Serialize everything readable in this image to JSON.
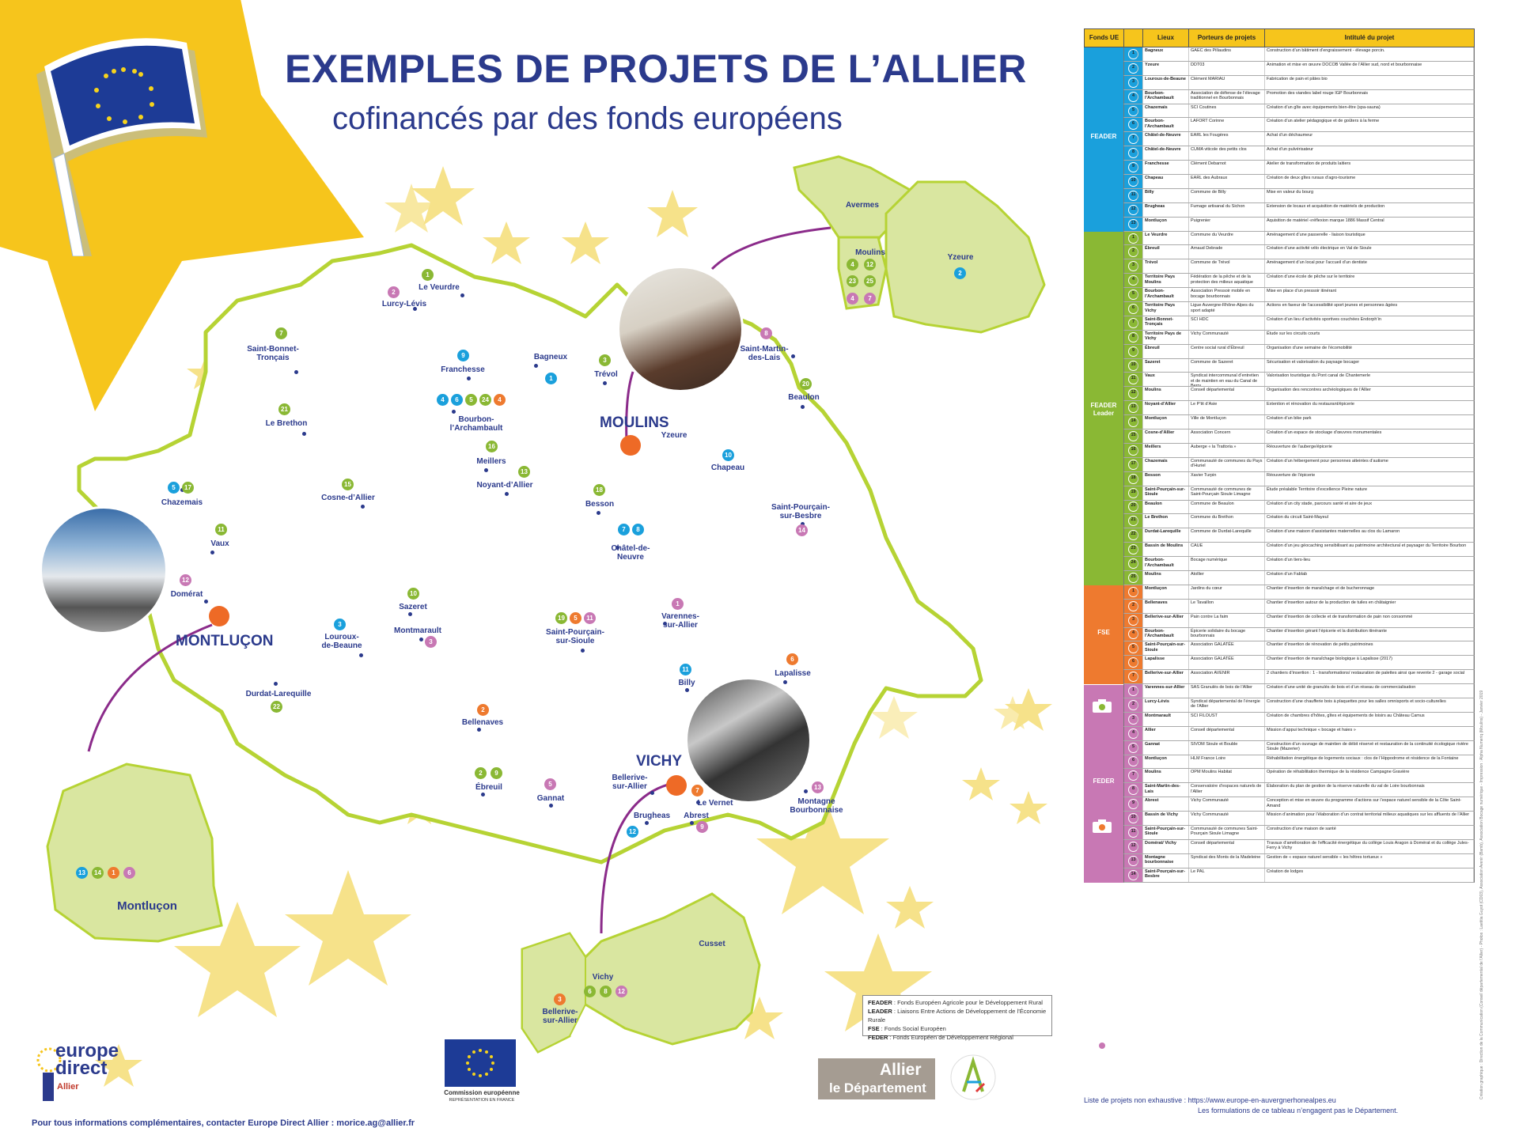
{
  "title": {
    "main": "EXEMPLES DE PROJETS DE L’ALLIER",
    "sub": "cofinancés par des fonds européens"
  },
  "colors": {
    "feader": "#1aa0dc",
    "leader": "#8ab834",
    "fse": "#ee7a2f",
    "feder": "#c878b4",
    "map_fill": "#ffffff",
    "map_outline": "#b6d334",
    "inset_fill": "#d9e6a0",
    "star": "#f6d96a",
    "city_dot": "#ee6a26"
  },
  "icons": [
    "eu-flag-icon",
    "camera-icon",
    "star-icon"
  ],
  "cities": {
    "moulins": "MOULINS",
    "montlucon": "MONTLUÇON",
    "vichy": "VICHY"
  },
  "places": [
    {
      "id": "le-veurdre",
      "label": "Le Veurdre"
    },
    {
      "id": "lurcy",
      "label": "Lurcy-Lévis"
    },
    {
      "id": "sbt",
      "label": "Saint-Bonnet-\nTronçais"
    },
    {
      "id": "franchesse",
      "label": "Franchesse"
    },
    {
      "id": "bagneux",
      "label": "Bagneux"
    },
    {
      "id": "trevol",
      "label": "Trévol"
    },
    {
      "id": "smlais",
      "label": "Saint-Martin-\ndes-Lais"
    },
    {
      "id": "beaulon",
      "label": "Beaulon"
    },
    {
      "id": "lebrethon",
      "label": "Le Brethon"
    },
    {
      "id": "bourbon",
      "label": "Bourbon-\nl’Archambault"
    },
    {
      "id": "yzeure",
      "label": "Yzeure"
    },
    {
      "id": "meillers",
      "label": "Meillers"
    },
    {
      "id": "noyant",
      "label": "Noyant-d’Allier"
    },
    {
      "id": "chapeau",
      "label": "Chapeau"
    },
    {
      "id": "chazemais",
      "label": "Chazemais"
    },
    {
      "id": "cosne",
      "label": "Cosne-d’Allier"
    },
    {
      "id": "besson",
      "label": "Besson"
    },
    {
      "id": "spsb",
      "label": "Saint-Pourçain-\nsur-Besbre"
    },
    {
      "id": "vaux",
      "label": "Vaux"
    },
    {
      "id": "chatel",
      "label": "Châtel-de-\nNeuvre"
    },
    {
      "id": "domerat",
      "label": "Domérat"
    },
    {
      "id": "sazeret",
      "label": "Sazeret"
    },
    {
      "id": "montmarault",
      "label": "Montmarault"
    },
    {
      "id": "louroux",
      "label": "Louroux-\nde-Beaune"
    },
    {
      "id": "spss",
      "label": "Saint-Pourçain-\nsur-Sioule"
    },
    {
      "id": "varennes",
      "label": "Varennes-\nsur-Allier"
    },
    {
      "id": "lapalisse",
      "label": "Lapalisse"
    },
    {
      "id": "billy",
      "label": "Billy"
    },
    {
      "id": "durdat",
      "label": "Durdat-Larequille"
    },
    {
      "id": "bellenaves",
      "label": "Bellenaves"
    },
    {
      "id": "ebreuil",
      "label": "Ébreuil"
    },
    {
      "id": "gannat",
      "label": "Gannat"
    },
    {
      "id": "bellerive",
      "label": "Bellerive-\nsur-Allier"
    },
    {
      "id": "levernet",
      "label": "Le Vernet"
    },
    {
      "id": "brugheas",
      "label": "Brugheas"
    },
    {
      "id": "abrest",
      "label": "Abrest"
    },
    {
      "id": "montagne",
      "label": "Montagne\nBourbonnaise"
    }
  ],
  "insets": {
    "moulins": {
      "avermes": "Avermes",
      "moulins": "Moulins",
      "yzeure": "Yzeure"
    },
    "montlucon": {
      "name": "Montluçon"
    },
    "vichy": {
      "cusset": "Cusset",
      "vichy": "Vichy",
      "bellerive": "Bellerive-\nsur-Allier"
    }
  },
  "legend": {
    "feader": "FEADER",
    "feader_text": " : Fonds Européen Agricole pour le Développement Rural",
    "leader": "LEADER",
    "leader_text": " : Liaisons Entre Actions de Développement de l’Économie Rurale",
    "fse": "FSE",
    "fse_text": " : Fonds Social Européen",
    "feder": "FEDER",
    "feder_text": " : Fonds Européen de Développement Régional"
  },
  "footer": "Pour tous informations complémentaires, contacter Europe Direct Allier : morice.ag@allier.fr",
  "logos": {
    "europe_direct": "europe\ndirect",
    "europe_direct_sub": "Allier",
    "commission": "Commission européenne",
    "commission_sub": "REPRÉSENTATION EN FRANCE",
    "allier1": "Allier",
    "allier2": "le Département"
  },
  "table": {
    "headers": [
      "Fonds UE",
      "Lieux",
      "Porteurs de projets",
      "Intitulé du projet"
    ],
    "funds": [
      {
        "name": "FEADER",
        "color": "#1aa0dc",
        "rows": [
          [
            "1",
            "Bagneux",
            "GAEC des Pillaudins",
            "Construction d’un bâtiment d’engraissement - élevage porcin."
          ],
          [
            "2",
            "Yzeure",
            "DDT03",
            "Animation et mise en œuvre DOCOB Vallée de l’Allier sud, nord et bourbonnaise"
          ],
          [
            "3",
            "Louroux-de-Beaune",
            "Clément MARIAU",
            "Fabrication de pain et pâtes bio"
          ],
          [
            "4",
            "Bourbon-l’Archambault",
            "Association de défense de l’élevage traditionnel en Bourbonnais",
            "Promotion des viandes label rouge IGP Bourbonnais"
          ],
          [
            "5",
            "Chazemais",
            "SCI Coutines",
            "Création d’un gîte avec équipements bien-être (spa-sauna)"
          ],
          [
            "6",
            "Bourbon-l’Archambault",
            "LAFORT Corinne",
            "Création d’un atelier pédagogique et de goûters à la ferme"
          ],
          [
            "7",
            "Châtel-de-Neuvre",
            "EARL les Fougères",
            "Achat d’un déchaumeur"
          ],
          [
            "8",
            "Châtel-de-Neuvre",
            "CUMA viticole des petits clos",
            "Achat d’un pulvérisateur"
          ],
          [
            "9",
            "Franchesse",
            "Clément Debarnot",
            "Atelier de transformation de produits laitiers"
          ],
          [
            "10",
            "Chapeau",
            "EARL des Aubraux",
            "Création de deux gîtes ruraux d’agro-tourisme"
          ],
          [
            "11",
            "Billy",
            "Commune de Billy",
            "Mise en valeur du bourg"
          ],
          [
            "12",
            "Brugheas",
            "Fumage artisanal du Sichon",
            "Extension de locaux et acquisition de matériels de production"
          ],
          [
            "13",
            "Montluçon",
            "Puigrenier",
            "Aquisition de matériel «réflexion marque 1886 Massif Central"
          ]
        ]
      },
      {
        "name": "FEADER\nLeader",
        "color": "#8ab834",
        "rows": [
          [
            "1",
            "Le Veurdre",
            "Commune du Veurdre",
            "Aménagement d’une passerelle - liaison touristique"
          ],
          [
            "2",
            "Ébreuil",
            "Arnaud Debrade",
            "Création d’une activité vélo électrique en Val de Sioule"
          ],
          [
            "3",
            "Trévol",
            "Commune de Trévol",
            "Aménagement d’un local pour l’accueil d’un dentiste"
          ],
          [
            "4",
            "Territoire Pays Moulins",
            "Fédération de la pêche et de la protection des milieux aquatique",
            "Création d’une école de pêche sur le territoire"
          ],
          [
            "5",
            "Bourbon-l’Archambault",
            "Association Pressoir mobile en bocage bourbonnais",
            "Mise en place d’un pressoir itinérant"
          ],
          [
            "6",
            "Territoire Pays Vichy",
            "Ligue Auvergne-Rhône-Alpes du sport adapté",
            "Actions en faveur de l’accessibilité sport jeunes et personnes âgées"
          ],
          [
            "7",
            "Saint-Bonnet-Tronçais",
            "SCI HDC",
            "Création d’un lieu d’activités sportives couchées Endorph’in"
          ],
          [
            "8",
            "Territoire Pays de Vichy",
            "Vichy Communauté",
            "Étude sur les circuits courts"
          ],
          [
            "9",
            "Ébreuil",
            "Centre social rural d’Ébreuil",
            "Organisation d’une semaine de l’écomobilité"
          ],
          [
            "10",
            "Sazeret",
            "Commune de Sazeret",
            "Sécurisation et valorisation du paysage bocager"
          ],
          [
            "11",
            "Vaux",
            "Syndicat intercommunal d’entretien et de maintien en eau du Canal de Berry",
            "Valorisation touristique du Pont canal de Chantemerle"
          ],
          [
            "12",
            "Moulins",
            "Conseil départemental",
            "Organisation des rencontres archéologiques de l’Allier"
          ],
          [
            "13",
            "Noyant-d’Allier",
            "Le P’tit d’Asie",
            "Extention et rénovation du restaurant/épicerie"
          ],
          [
            "14",
            "Montluçon",
            "Ville de Montluçon",
            "Création d’un bike park"
          ],
          [
            "15",
            "Cosne-d’Allier",
            "Association Concern",
            "Création d’un espace de stockage d’œuvres monumentales"
          ],
          [
            "16",
            "Meillers",
            "Auberge « la Trattoria »",
            "Réouverture de l’auberge/épicerie"
          ],
          [
            "17",
            "Chazemais",
            "Communauté de communes du Pays d’Huriel",
            "Création d’un hébergement pour personnes atteintes d’autisme"
          ],
          [
            "18",
            "Besson",
            "Xavier Turpin",
            "Réouverture de l’épicerie"
          ],
          [
            "19",
            "Saint-Pourçain-sur-Sioule",
            "Communauté de communes de Saint-Pourçain Sioule Limagne",
            "Étude préalable Territoire d’excellence Pleine nature"
          ],
          [
            "20",
            "Beaulon",
            "Commune de Beaulon",
            "Création d’un city stade, parcours santé et aire de jeux"
          ],
          [
            "21",
            "Le Brethon",
            "Commune du Brethon",
            "Création du circuit Saint-Mayeul"
          ],
          [
            "22",
            "Durdat-Larequille",
            "Commune de Durdat-Larequille",
            "Création d’une maison d’assistantes maternelles au clos du Lamaron"
          ],
          [
            "23",
            "Bassin de Moulins",
            "CAUE",
            "Création d’un jeu géocaching sensibilisant au patrimoine architectural et paysager du Territoire Bourbon"
          ],
          [
            "24",
            "Bourbon-l’Archambault",
            "Bocage numérique",
            "Création d’un tiers-lieu"
          ],
          [
            "25",
            "Moulins",
            "Atollier",
            "Création d’un Fablab"
          ]
        ]
      },
      {
        "name": "FSE",
        "color": "#ee7a2f",
        "rows": [
          [
            "1",
            "Montluçon",
            "Jardins du cœur",
            "Chantier d’insertion de maraîchage et de bucheronnage"
          ],
          [
            "2",
            "Bellenaves",
            "Le Tavaillon",
            "Chantier d’insertion autour de la production de tuiles en châtaignier"
          ],
          [
            "3",
            "Bellerive-sur-Allier",
            "Pain contre La faim",
            "Chantier d’insertion de collecte et de transformation de pain non consommé"
          ],
          [
            "4",
            "Bourbon-l’Archambault",
            "Épicerie solidaire du bocage bourbonnais",
            "Chantier d’insertion gérant l’épicerie et la distribution itinérante"
          ],
          [
            "5",
            "Saint-Pourçain-sur-Sioule",
            "Association GALATÉE",
            "Chantier d’insertion de rénovation de petits patrimoines"
          ],
          [
            "6",
            "Lapalisse",
            "Association GALATÉE",
            "Chantier d’insertion de maraîchage biologique à Lapalisse (2017)"
          ],
          [
            "7",
            "Bellerive-sur-Allier",
            "Association AVENIR",
            "2 chantiers d’insertion : 1 - transformations/ restauration de palettes ainsi que revente 2 - garage social"
          ]
        ]
      },
      {
        "name": "FEDER",
        "color": "#c878b4",
        "rows": [
          [
            "1",
            "Varennes-sur-Allier",
            "SAS Granulés de bois de l’Allier",
            "Création d’une unité de granulés de bois et d’un réseau de commercialisation"
          ],
          [
            "2",
            "Lurcy-Lévis",
            "Syndicat départemental de l’énergie de l’Allier",
            "Construction d’une chaufferie bois à plaquettes pour les salles omnisports et socio-culturelles"
          ],
          [
            "3",
            "Montmarault",
            "SCI FILOUST",
            "Création de chambres d’hôtes, gîtes et équipements de loisirs au Château Camus"
          ],
          [
            "4",
            "Allier",
            "Conseil départemental",
            "Mission d’appui technique « bocage et haies »"
          ],
          [
            "5",
            "Gannat",
            "SIVOM Sioule et Bouble",
            "Construction d’un ouvrage de maintien de débit réservé et restauration de la continuité écologique rivière Sioule (Mazerier)"
          ],
          [
            "6",
            "Montluçon",
            "HLM France Loire",
            "Réhabilitation énergétique de logements sociaux : clos de l’Hippodrome et résidence de la Fontaine"
          ],
          [
            "7",
            "Moulins",
            "OPM Moulins Habitat",
            "Opération de réhabilitation thermique de la résidence Campagne Gravière"
          ],
          [
            "8",
            "Saint-Martin-des-Lais",
            "Conservatoire d’espaces naturels de l’Allier",
            "Élaboration du plan de gestion de la réserve naturelle du val de Loire bourbonnais"
          ],
          [
            "9",
            "Abrest",
            "Vichy Communauté",
            "Conception et mise en œuvre du programme d’actions sur l’espace naturel sensible de la Côte Saint-Amand"
          ],
          [
            "10",
            "Bassin de Vichy",
            "Vichy Communauté",
            "Mission d’animation pour l’élaboration d’un contrat territorial milieux aquatiques sur les affluents de l’Allier"
          ],
          [
            "11",
            "Saint-Pourçain-sur-Sioule",
            "Communauté de communes Saint-Pourçain Sioule Limagne",
            "Construction d’une maison de santé"
          ],
          [
            "12",
            "Domérat/ Vichy",
            "Conseil départemental",
            "Travaux d’amélioration de l’efficacité énergétique du collège Louis Aragon à Domérat et du collège Jules-Ferry à Vichy"
          ],
          [
            "13",
            "Montagne bourbonnaise",
            "Syndicat des Monts de la Madeleine",
            "Gestion de « espace naturel sensible « les hêtres tortueux »"
          ],
          [
            "14",
            "Saint-Pourçain-sur-Besbre",
            "Le PAL",
            "Création de lodges"
          ]
        ]
      }
    ],
    "note1": "Liste de projets non exhaustive : https://www.europe-en-auvergnerhonealpes.eu",
    "note2": "Les formulations de ce tableau n’engagent pas le Département.",
    "credit": "Création graphique : Direction de la Communication (Conseil départemental de l’Allier) - Photos : Laetitia Guyot (CD03), Association Avenir (Bamb), Association Bocage numérique - Impression : Alpha Numeriq (Moulins) - Janvier 2019"
  }
}
